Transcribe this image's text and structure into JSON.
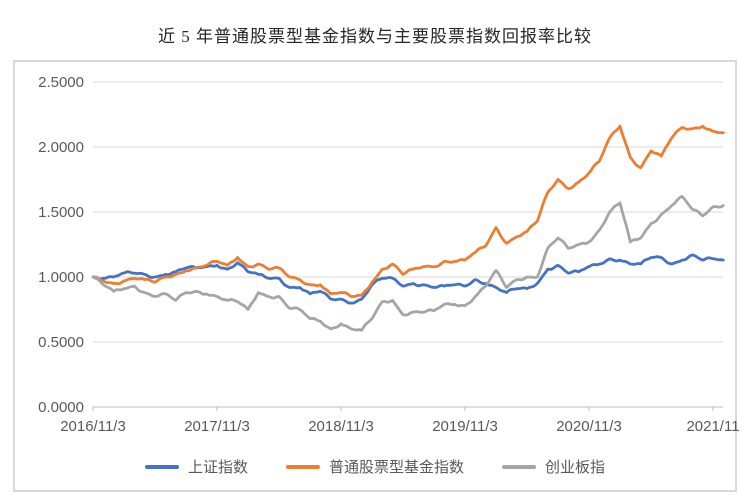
{
  "title": "近 5 年普通股票型基金指数与主要股票指数回报率比较",
  "colors": {
    "gridline": "#d9d9d9",
    "axis_line": "#bfbfbf",
    "tick_text": "#595959",
    "frame_border": "#d9d9d9",
    "background": "#ffffff"
  },
  "chart_data": {
    "type": "line",
    "title": "近 5 年普通股票型基金指数与主要股票指数回报率比较",
    "xlabel": "",
    "ylabel": "",
    "ylim": [
      0,
      2.5
    ],
    "y_step": 0.5,
    "y_tick_labels": [
      "0.0000",
      "0.5000",
      "1.0000",
      "1.5000",
      "2.0000",
      "2.5000"
    ],
    "x_tick_labels": [
      "2016/11/3",
      "2017/11/3",
      "2018/11/3",
      "2019/11/3",
      "2020/11/3",
      "2021/11"
    ],
    "x_unit": "months since 2016/11/3, one value per month",
    "x_months_span": 61,
    "grid": "horizontal",
    "legend_position": "bottom",
    "series": [
      {
        "name": "上证指数",
        "color": "#4472C4",
        "values": [
          1.0,
          0.99,
          1.0,
          1.03,
          1.03,
          1.02,
          1.0,
          1.02,
          1.04,
          1.07,
          1.07,
          1.08,
          1.09,
          1.06,
          1.11,
          1.04,
          1.02,
          0.99,
          0.99,
          0.92,
          0.92,
          0.87,
          0.89,
          0.83,
          0.83,
          0.8,
          0.83,
          0.94,
          0.99,
          0.99,
          0.93,
          0.95,
          0.94,
          0.92,
          0.93,
          0.94,
          0.93,
          0.98,
          0.95,
          0.92,
          0.88,
          0.91,
          0.91,
          0.95,
          1.06,
          1.09,
          1.03,
          1.04,
          1.08,
          1.1,
          1.14,
          1.13,
          1.1,
          1.1,
          1.15,
          1.15,
          1.1,
          1.13,
          1.17,
          1.13,
          1.14,
          1.13
        ]
      },
      {
        "name": "普通股票型基金指数",
        "color": "#ED7D31",
        "values": [
          1.0,
          0.97,
          0.95,
          0.97,
          0.99,
          0.98,
          0.96,
          1.0,
          1.02,
          1.05,
          1.07,
          1.09,
          1.12,
          1.09,
          1.15,
          1.08,
          1.1,
          1.06,
          1.07,
          1.0,
          0.98,
          0.94,
          0.94,
          0.87,
          0.88,
          0.85,
          0.86,
          0.96,
          1.06,
          1.1,
          1.02,
          1.06,
          1.08,
          1.08,
          1.12,
          1.12,
          1.13,
          1.19,
          1.24,
          1.38,
          1.26,
          1.31,
          1.35,
          1.43,
          1.65,
          1.75,
          1.68,
          1.73,
          1.8,
          1.89,
          2.07,
          2.16,
          1.92,
          1.84,
          1.97,
          1.93,
          2.07,
          2.15,
          2.14,
          2.16,
          2.12,
          2.11
        ]
      },
      {
        "name": "创业板指",
        "color": "#A5A5A5",
        "values": [
          1.0,
          0.94,
          0.89,
          0.91,
          0.93,
          0.88,
          0.85,
          0.87,
          0.82,
          0.88,
          0.89,
          0.87,
          0.85,
          0.82,
          0.81,
          0.75,
          0.88,
          0.85,
          0.85,
          0.76,
          0.75,
          0.68,
          0.66,
          0.6,
          0.64,
          0.6,
          0.59,
          0.68,
          0.81,
          0.82,
          0.71,
          0.73,
          0.73,
          0.74,
          0.79,
          0.79,
          0.78,
          0.85,
          0.93,
          1.05,
          0.92,
          0.98,
          1.0,
          1.0,
          1.22,
          1.3,
          1.22,
          1.25,
          1.27,
          1.36,
          1.5,
          1.57,
          1.27,
          1.3,
          1.41,
          1.48,
          1.55,
          1.62,
          1.52,
          1.47,
          1.54,
          1.55
        ]
      }
    ]
  }
}
